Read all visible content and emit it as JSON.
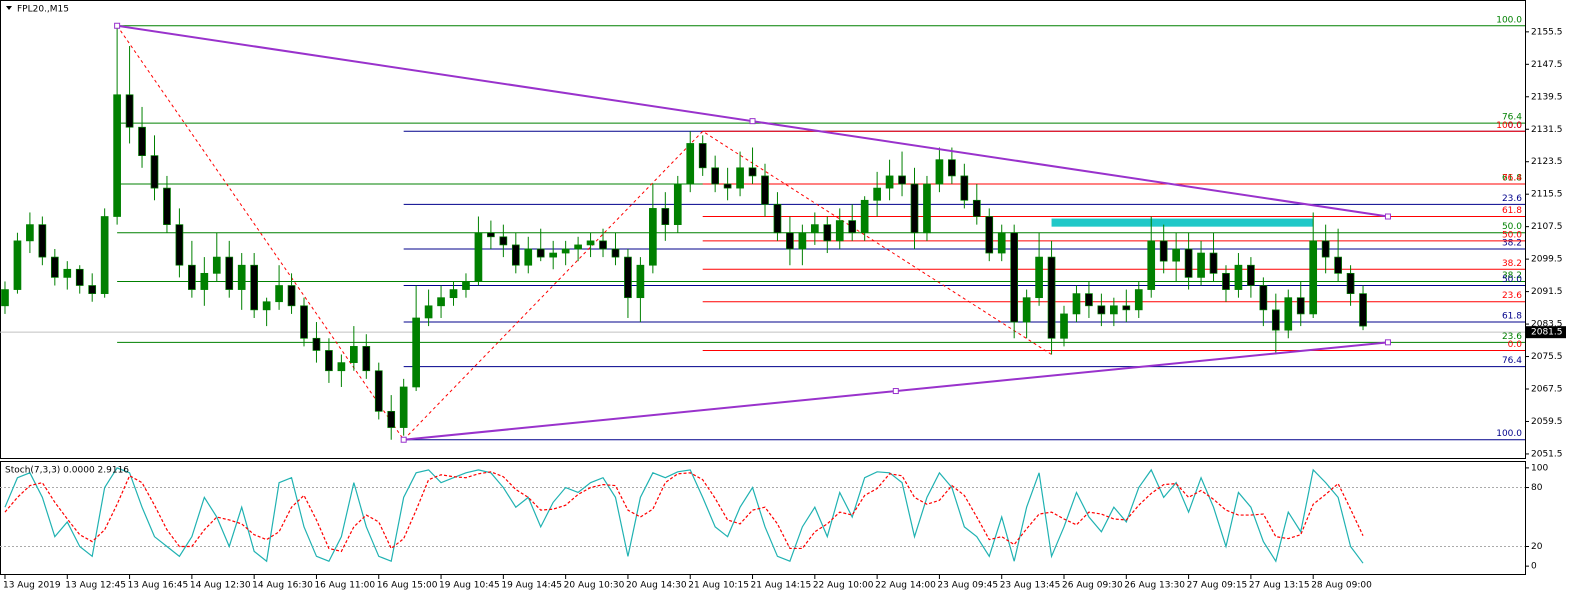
{
  "chart_data": [
    {
      "type": "candlestick",
      "title": "FPL20.,M15",
      "up_color": "#008000",
      "down_color": "#000000",
      "xlim": [
        -0.4,
        122
      ],
      "ylim": [
        2050.5,
        2163.1
      ],
      "yticks": [
        2155.5,
        2147.5,
        2139.5,
        2131.5,
        2123.5,
        2115.5,
        2107.5,
        2099.5,
        2091.5,
        2083.5,
        2075.5,
        2067.5,
        2059.5,
        2051.5
      ],
      "xticks": [
        {
          "value": 0,
          "label": "13 Aug 2019"
        },
        {
          "value": 5,
          "label": "13 Aug 12:45"
        },
        {
          "value": 10,
          "label": "13 Aug 16:45"
        },
        {
          "value": 15,
          "label": "14 Aug 12:30"
        },
        {
          "value": 20,
          "label": "14 Aug 16:30"
        },
        {
          "value": 25,
          "label": "16 Aug 11:00"
        },
        {
          "value": 30,
          "label": "16 Aug 15:00"
        },
        {
          "value": 35,
          "label": "19 Aug 10:45"
        },
        {
          "value": 40,
          "label": "19 Aug 14:45"
        },
        {
          "value": 45,
          "label": "20 Aug 10:30"
        },
        {
          "value": 50,
          "label": "20 Aug 14:30"
        },
        {
          "value": 55,
          "label": "21 Aug 10:15"
        },
        {
          "value": 60,
          "label": "21 Aug 14:15"
        },
        {
          "value": 65,
          "label": "22 Aug 10:00"
        },
        {
          "value": 70,
          "label": "22 Aug 14:00"
        },
        {
          "value": 75,
          "label": "23 Aug 09:45"
        },
        {
          "value": 80,
          "label": "23 Aug 13:45"
        },
        {
          "value": 85,
          "label": "26 Aug 09:30"
        },
        {
          "value": 90,
          "label": "26 Aug 13:30"
        },
        {
          "value": 95,
          "label": "27 Aug 09:15"
        },
        {
          "value": 100,
          "label": "27 Aug 13:15"
        },
        {
          "value": 105,
          "label": "28 Aug 09:00"
        }
      ],
      "candles": [
        [
          2088,
          2094,
          2086,
          2092
        ],
        [
          2092,
          2106,
          2091,
          2104
        ],
        [
          2104,
          2111,
          2101,
          2108
        ],
        [
          2108,
          2110,
          2098,
          2100
        ],
        [
          2100,
          2102,
          2093,
          2095
        ],
        [
          2095,
          2099,
          2092,
          2097
        ],
        [
          2097,
          2098,
          2091,
          2093
        ],
        [
          2093,
          2096,
          2089,
          2091
        ],
        [
          2091,
          2112,
          2090,
          2110
        ],
        [
          2110,
          2157,
          2108,
          2140
        ],
        [
          2140,
          2152,
          2128,
          2132
        ],
        [
          2132,
          2137,
          2122,
          2125
        ],
        [
          2125,
          2130,
          2114,
          2117
        ],
        [
          2117,
          2120,
          2106,
          2108
        ],
        [
          2108,
          2112,
          2095,
          2098
        ],
        [
          2098,
          2104,
          2090,
          2092
        ],
        [
          2092,
          2100,
          2088,
          2096
        ],
        [
          2096,
          2106,
          2094,
          2100
        ],
        [
          2100,
          2104,
          2090,
          2092
        ],
        [
          2092,
          2101,
          2087,
          2098
        ],
        [
          2098,
          2101,
          2085,
          2087
        ],
        [
          2087,
          2090,
          2083,
          2089
        ],
        [
          2089,
          2098,
          2087,
          2093
        ],
        [
          2093,
          2096,
          2086,
          2088
        ],
        [
          2088,
          2090,
          2078,
          2080
        ],
        [
          2080,
          2084,
          2074,
          2077
        ],
        [
          2077,
          2080,
          2069,
          2072
        ],
        [
          2072,
          2076,
          2068,
          2074
        ],
        [
          2074,
          2083,
          2072,
          2078
        ],
        [
          2078,
          2081,
          2070,
          2072
        ],
        [
          2072,
          2074,
          2060,
          2062
        ],
        [
          2062,
          2066,
          2055,
          2058
        ],
        [
          2058,
          2070,
          2056,
          2068
        ],
        [
          2068,
          2093,
          2067,
          2085
        ],
        [
          2085,
          2092,
          2083,
          2088
        ],
        [
          2088,
          2093,
          2085,
          2090
        ],
        [
          2090,
          2094,
          2088,
          2092
        ],
        [
          2092,
          2096,
          2090,
          2094
        ],
        [
          2094,
          2110,
          2093,
          2106
        ],
        [
          2106,
          2109,
          2102,
          2105
        ],
        [
          2105,
          2108,
          2100,
          2103
        ],
        [
          2103,
          2106,
          2096,
          2098
        ],
        [
          2098,
          2105,
          2096,
          2102
        ],
        [
          2102,
          2107,
          2099,
          2100
        ],
        [
          2100,
          2104,
          2097,
          2101
        ],
        [
          2101,
          2104,
          2098,
          2102
        ],
        [
          2102,
          2105,
          2099,
          2103
        ],
        [
          2103,
          2106,
          2100,
          2104
        ],
        [
          2104,
          2107,
          2100,
          2102
        ],
        [
          2102,
          2106,
          2098,
          2100
        ],
        [
          2100,
          2102,
          2085,
          2090
        ],
        [
          2090,
          2100,
          2084,
          2098
        ],
        [
          2098,
          2118,
          2096,
          2112
        ],
        [
          2112,
          2116,
          2104,
          2108
        ],
        [
          2108,
          2120,
          2106,
          2118
        ],
        [
          2118,
          2131,
          2116,
          2128
        ],
        [
          2128,
          2130,
          2120,
          2122
        ],
        [
          2122,
          2125,
          2116,
          2118
        ],
        [
          2118,
          2122,
          2114,
          2117
        ],
        [
          2117,
          2126,
          2115,
          2122
        ],
        [
          2122,
          2127,
          2118,
          2120
        ],
        [
          2120,
          2123,
          2110,
          2113
        ],
        [
          2113,
          2116,
          2104,
          2106
        ],
        [
          2106,
          2110,
          2098,
          2102
        ],
        [
          2102,
          2108,
          2098,
          2106
        ],
        [
          2106,
          2111,
          2103,
          2108
        ],
        [
          2108,
          2110,
          2101,
          2104
        ],
        [
          2104,
          2112,
          2102,
          2109
        ],
        [
          2109,
          2113,
          2104,
          2106
        ],
        [
          2106,
          2115,
          2104,
          2114
        ],
        [
          2114,
          2121,
          2110,
          2117
        ],
        [
          2117,
          2124,
          2114,
          2120
        ],
        [
          2120,
          2126,
          2115,
          2118
        ],
        [
          2118,
          2122,
          2102,
          2106
        ],
        [
          2106,
          2120,
          2104,
          2118
        ],
        [
          2118,
          2127,
          2116,
          2124
        ],
        [
          2124,
          2127,
          2118,
          2120
        ],
        [
          2120,
          2123,
          2112,
          2114
        ],
        [
          2114,
          2118,
          2108,
          2110
        ],
        [
          2110,
          2112,
          2099,
          2101
        ],
        [
          2101,
          2108,
          2099,
          2106
        ],
        [
          2106,
          2108,
          2080,
          2084
        ],
        [
          2084,
          2092,
          2080,
          2090
        ],
        [
          2090,
          2106,
          2088,
          2100
        ],
        [
          2100,
          2104,
          2076,
          2080
        ],
        [
          2080,
          2088,
          2078,
          2086
        ],
        [
          2086,
          2093,
          2084,
          2091
        ],
        [
          2091,
          2094,
          2085,
          2088
        ],
        [
          2088,
          2091,
          2083,
          2086
        ],
        [
          2086,
          2090,
          2083,
          2088
        ],
        [
          2088,
          2092,
          2084,
          2087
        ],
        [
          2087,
          2094,
          2085,
          2092
        ],
        [
          2092,
          2110,
          2090,
          2104
        ],
        [
          2104,
          2108,
          2096,
          2099
        ],
        [
          2099,
          2106,
          2094,
          2102
        ],
        [
          2102,
          2106,
          2092,
          2095
        ],
        [
          2095,
          2104,
          2093,
          2101
        ],
        [
          2101,
          2106,
          2094,
          2096
        ],
        [
          2096,
          2098,
          2089,
          2092
        ],
        [
          2092,
          2101,
          2090,
          2098
        ],
        [
          2098,
          2100,
          2090,
          2093
        ],
        [
          2093,
          2095,
          2083,
          2087
        ],
        [
          2087,
          2091,
          2076,
          2082
        ],
        [
          2082,
          2092,
          2080,
          2090
        ],
        [
          2090,
          2094,
          2083,
          2086
        ],
        [
          2086,
          2111,
          2085,
          2104
        ],
        [
          2104,
          2108,
          2096,
          2100
        ],
        [
          2100,
          2107,
          2094,
          2096
        ],
        [
          2096,
          2098,
          2088,
          2091
        ],
        [
          2091,
          2093,
          2082,
          2083
        ]
      ],
      "current_price": 2081.5,
      "fibonacci": [
        {
          "color": "#008000",
          "from": 9,
          "levels": [
            {
              "label": "100.0",
              "value": 2157
            },
            {
              "label": "76.4",
              "value": 2133
            },
            {
              "label": "61.8",
              "value": 2118
            },
            {
              "label": "50.0",
              "value": 2106
            },
            {
              "label": "38.2",
              "value": 2094
            },
            {
              "label": "23.6",
              "value": 2079
            }
          ]
        },
        {
          "color": "#00008b",
          "from": 32,
          "levels": [
            {
              "label": "100.0",
              "value": 2055
            },
            {
              "label": "76.4",
              "value": 2073
            },
            {
              "label": "61.8",
              "value": 2084
            },
            {
              "label": "50.0",
              "value": 2093
            },
            {
              "label": "38.2",
              "value": 2102
            },
            {
              "label": "23.6",
              "value": 2113
            },
            {
              "label": "0.0",
              "value": 2131
            }
          ]
        },
        {
          "color": "#ff0000",
          "from": 56,
          "levels": [
            {
              "label": "100.0",
              "value": 2131
            },
            {
              "label": "76.4",
              "value": 2118
            },
            {
              "label": "61.8",
              "value": 2110
            },
            {
              "label": "50.0",
              "value": 2104
            },
            {
              "label": "38.2",
              "value": 2097
            },
            {
              "label": "23.6",
              "value": 2089
            },
            {
              "label": "0.0",
              "value": 2077
            }
          ]
        }
      ],
      "trendlines": [
        {
          "color": "#9932cc",
          "points": [
            [
              9,
              2157
            ],
            [
              111,
              2110
            ]
          ]
        },
        {
          "color": "#9932cc",
          "points": [
            [
              32,
              2055
            ],
            [
              111,
              2079
            ]
          ]
        }
      ],
      "zigzag": {
        "color": "#ff0000",
        "points": [
          [
            9,
            2157
          ],
          [
            32,
            2055
          ],
          [
            56,
            2131
          ],
          [
            84,
            2076
          ]
        ]
      },
      "zone": {
        "color": "#20c8c8",
        "x": [
          84,
          105
        ],
        "y": [
          2107.5,
          2109.5
        ]
      }
    },
    {
      "type": "line",
      "title": "Stoch(7,3,3) 0.0000 2.9116",
      "ylim": [
        -8,
        106
      ],
      "yticks": [
        100,
        80,
        20,
        0
      ],
      "levels": [
        80,
        20
      ],
      "series": [
        {
          "color": "#20b2b2",
          "dash": false,
          "values": [
            60,
            90,
            95,
            70,
            30,
            45,
            20,
            10,
            80,
            100,
            95,
            60,
            30,
            20,
            10,
            30,
            70,
            50,
            20,
            60,
            15,
            5,
            85,
            90,
            40,
            10,
            5,
            30,
            85,
            40,
            10,
            5,
            70,
            95,
            98,
            85,
            90,
            95,
            98,
            95,
            80,
            60,
            70,
            40,
            65,
            80,
            75,
            85,
            90,
            70,
            10,
            70,
            95,
            90,
            96,
            98,
            70,
            40,
            30,
            60,
            80,
            40,
            10,
            5,
            40,
            60,
            30,
            75,
            50,
            90,
            96,
            95,
            85,
            30,
            70,
            95,
            80,
            40,
            30,
            10,
            50,
            5,
            60,
            95,
            10,
            40,
            75,
            50,
            35,
            60,
            45,
            80,
            98,
            70,
            85,
            55,
            90,
            60,
            20,
            75,
            60,
            25,
            5,
            55,
            35,
            98,
            85,
            70,
            20,
            3
          ]
        },
        {
          "color": "#ff0000",
          "dash": true,
          "values": [
            55,
            70,
            82,
            85,
            65,
            48,
            32,
            25,
            37,
            63,
            92,
            85,
            62,
            37,
            20,
            20,
            37,
            50,
            47,
            43,
            32,
            27,
            35,
            60,
            72,
            47,
            18,
            15,
            40,
            52,
            45,
            18,
            28,
            57,
            88,
            93,
            91,
            90,
            94,
            96,
            91,
            78,
            70,
            57,
            58,
            62,
            73,
            80,
            83,
            82,
            57,
            50,
            58,
            85,
            94,
            95,
            88,
            69,
            47,
            43,
            57,
            60,
            43,
            18,
            18,
            35,
            43,
            55,
            52,
            72,
            79,
            94,
            92,
            70,
            63,
            67,
            82,
            72,
            50,
            27,
            30,
            22,
            38,
            53,
            55,
            48,
            42,
            55,
            53,
            48,
            47,
            62,
            74,
            83,
            84,
            70,
            77,
            68,
            57,
            52,
            52,
            53,
            30,
            28,
            32,
            63,
            73,
            84,
            58,
            31
          ]
        }
      ]
    }
  ]
}
